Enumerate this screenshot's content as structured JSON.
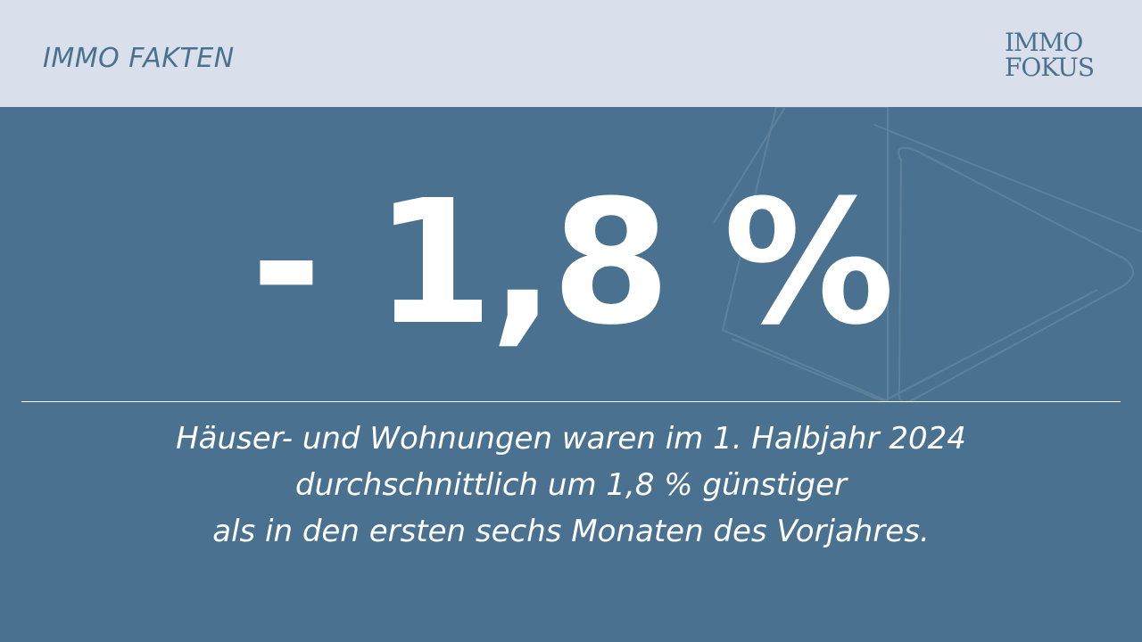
{
  "header": {
    "series_label": "IMMO FAKTEN",
    "logo_line_1": "IMMO",
    "logo_line_2": "FOKUS"
  },
  "main": {
    "headline_value": "- 1,8 %",
    "caption_lines": [
      "Häuser- und Wohnungen waren im 1. Halbjahr 2024",
      "durchschnittlich um 1,8 % günstiger",
      "als in den ersten sechs Monaten des Vorjahres."
    ]
  },
  "colors": {
    "background": "#4a7290",
    "top_bar": "#d9e0ec",
    "text_light": "#ffffff",
    "brand": "#4a7290"
  },
  "icons": {
    "background_decoration": "outlined-triangle-shapes"
  }
}
